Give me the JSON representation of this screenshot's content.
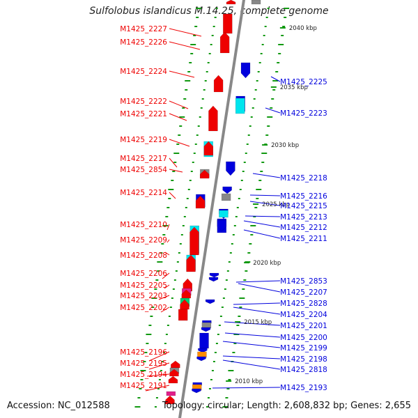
{
  "title": "Sulfolobus islandicus M.14.25, complete genome",
  "footer": {
    "accession": "Accession: NC_012588",
    "summary": "Topology: circular; Length: 2,608,832 bp; Genes: 2,655"
  },
  "colors": {
    "forward": "#ee0000",
    "reverse": "#0000dd",
    "rna": "#00e5ee",
    "pseudo": "#888888",
    "other": "#ff8c00",
    "magenta": "#e0208a",
    "green": "#00cc77",
    "tick": "#119911",
    "backbone": "#888888"
  },
  "positions": [
    {
      "label": "2040 kbp"
    },
    {
      "label": "2035 kbp"
    },
    {
      "label": "2030 kbp"
    },
    {
      "label": "2025 kbp"
    },
    {
      "label": "2020 kbp"
    },
    {
      "label": "2015 kbp"
    },
    {
      "label": "2010 kbp"
    }
  ],
  "left_labels": [
    {
      "text": "M1425_2227"
    },
    {
      "text": "M1425_2226"
    },
    {
      "text": "M1425_2224"
    },
    {
      "text": "M1425_2222"
    },
    {
      "text": "M1425_2221"
    },
    {
      "text": "M1425_2219"
    },
    {
      "text": "M1425_2217"
    },
    {
      "text": "M1425_2854"
    },
    {
      "text": "M1425_2214"
    },
    {
      "text": "M1425_2210"
    },
    {
      "text": "M1425_2209"
    },
    {
      "text": "M1425_2208"
    },
    {
      "text": "M1425_2206"
    },
    {
      "text": "M1425_2205"
    },
    {
      "text": "M1425_2203"
    },
    {
      "text": "M1425_2202"
    },
    {
      "text": "M1425_2196"
    },
    {
      "text": "M1425_2195"
    },
    {
      "text": "M1425_2194"
    },
    {
      "text": "M1425_2191"
    }
  ],
  "right_labels": [
    {
      "text": "M1425_2225"
    },
    {
      "text": "M1425_2223"
    },
    {
      "text": "M1425_2218"
    },
    {
      "text": "M1425_2216"
    },
    {
      "text": "M1425_2215"
    },
    {
      "text": "M1425_2213"
    },
    {
      "text": "M1425_2212"
    },
    {
      "text": "M1425_2211"
    },
    {
      "text": "M1425_2853"
    },
    {
      "text": "M1425_2207"
    },
    {
      "text": "M1425_2828"
    },
    {
      "text": "M1425_2204"
    },
    {
      "text": "M1425_2201"
    },
    {
      "text": "M1425_2200"
    },
    {
      "text": "M1425_2199"
    },
    {
      "text": "M1425_2198"
    },
    {
      "text": "M1425_2818"
    },
    {
      "text": "M1425_2193"
    }
  ]
}
